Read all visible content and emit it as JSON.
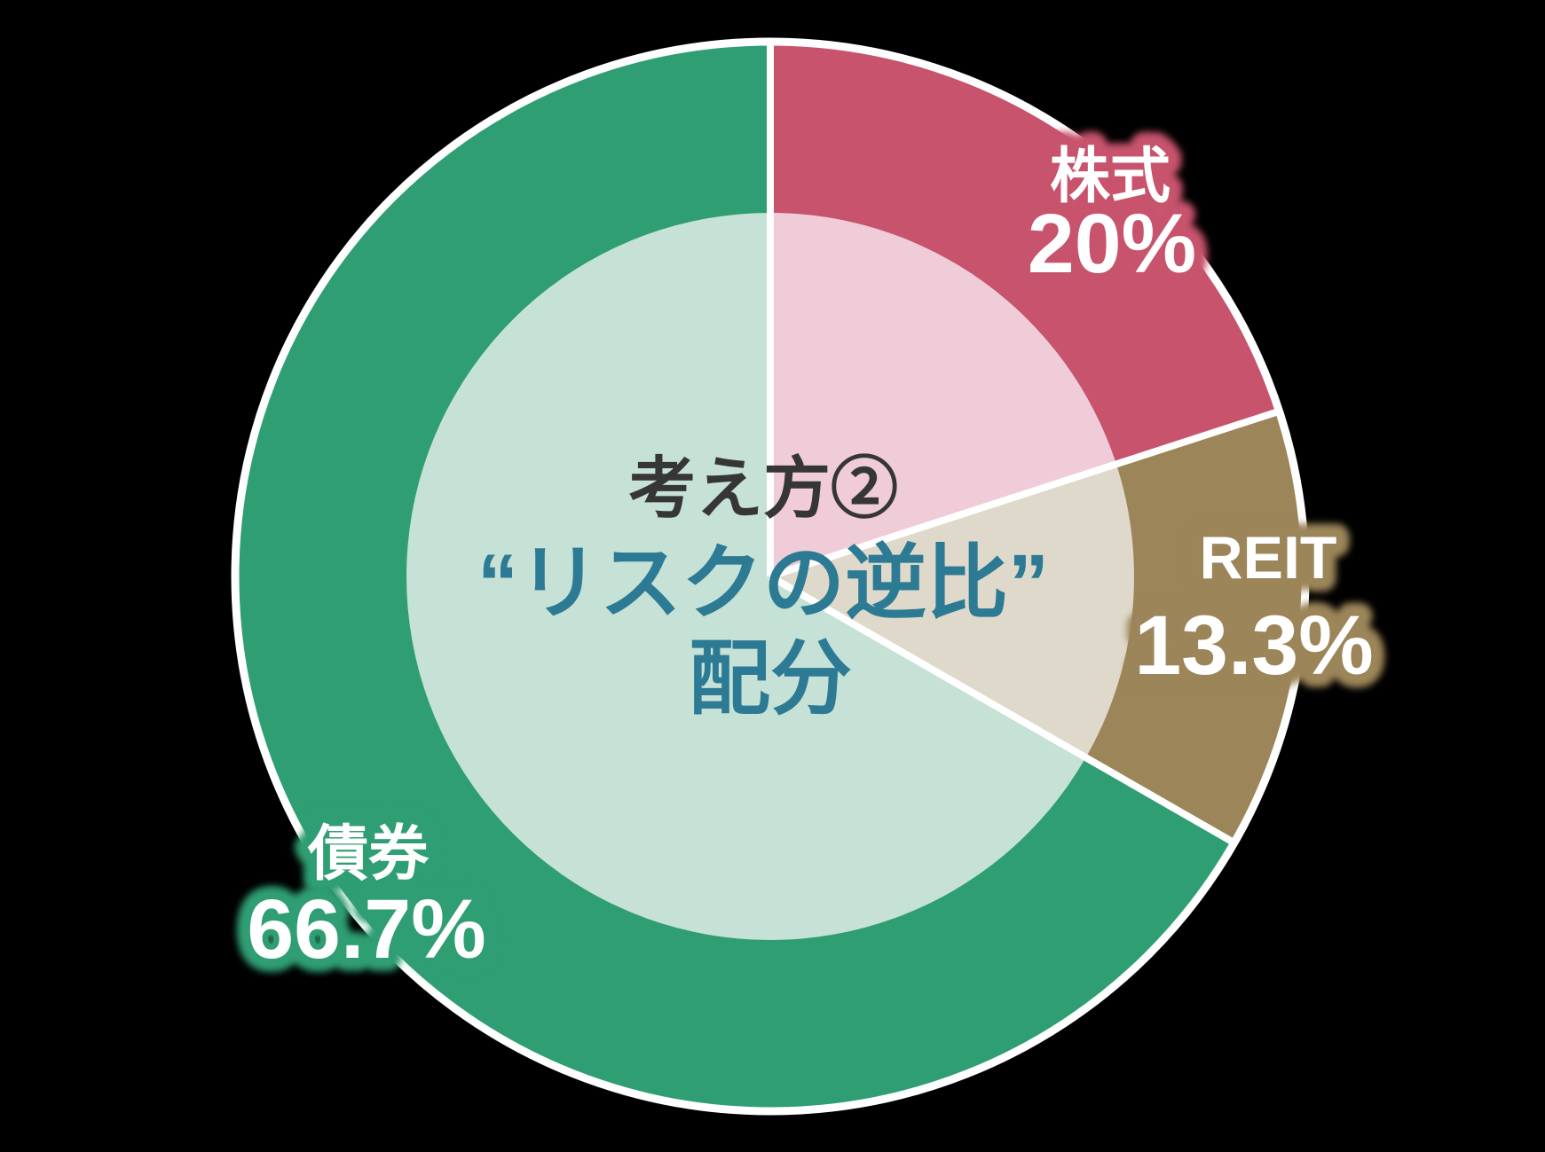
{
  "background_color": "#000000",
  "chart_data": {
    "type": "pie",
    "title": "考え方② “リスクの逆比” 配分",
    "center_text": {
      "heading": "考え方②",
      "line1": "“リスクの逆比”",
      "line2": "配分",
      "heading_color": "#363636",
      "text_color": "#2c7a94"
    },
    "segments": [
      {
        "label": "株式",
        "value": 20,
        "value_text": "20%",
        "color": "#c7536d",
        "light_color": "#efccd8"
      },
      {
        "label": "REIT",
        "value": 13.3,
        "value_text": "13.3%",
        "color": "#9b8559",
        "light_color": "#ded9ca"
      },
      {
        "label": "債券",
        "value": 66.7,
        "value_text": "66.7%",
        "color": "#2f9e73",
        "light_color": "#c6e1d5"
      }
    ],
    "start_angle_deg": 0,
    "direction": "clockwise",
    "divider_color": "#ffffff",
    "outer_border_color": "#ffffff",
    "label_text_color": "#ffffff",
    "legend_position": "none"
  }
}
